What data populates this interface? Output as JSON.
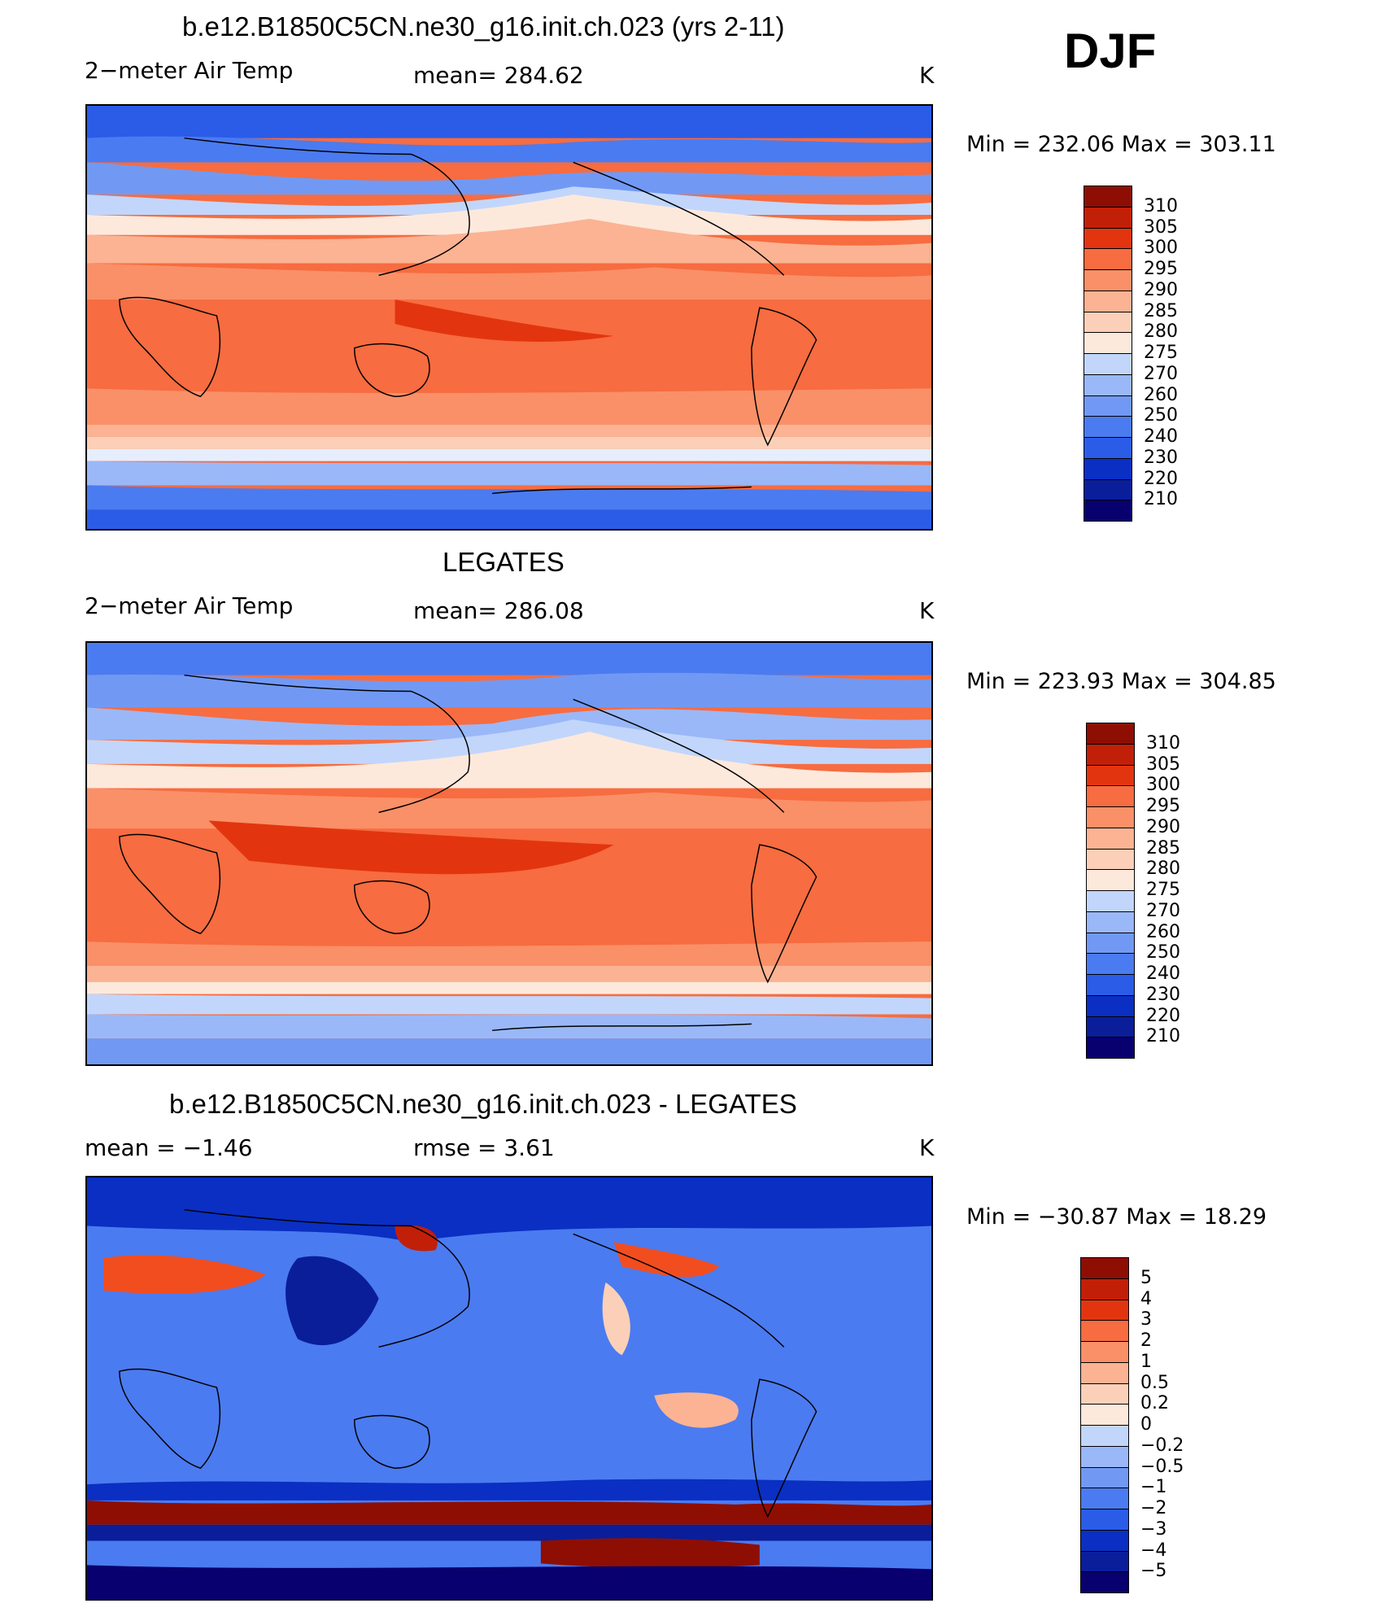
{
  "season": "DJF",
  "colors": {
    "temp_palette": [
      "#08006e",
      "#0a1e9a",
      "#0a2fc2",
      "#1442d8",
      "#2a5ce8",
      "#4b7bf0",
      "#7199f4",
      "#9ab8f8",
      "#c2d6fb",
      "#e6eefe",
      "#fde9dc",
      "#fcd0b8",
      "#fbb393",
      "#fa9068",
      "#f76c40",
      "#f24d1f",
      "#e2350f",
      "#c21f08",
      "#8e0e03"
    ],
    "diff_palette": [
      "#08006e",
      "#0a1e9a",
      "#0a2fc2",
      "#1442d8",
      "#2a5ce8",
      "#4b7bf0",
      "#7199f4",
      "#9ab8f8",
      "#c2d6fb",
      "#e6eefe",
      "#fde9dc",
      "#fcd0b8",
      "#fbb393",
      "#fa9068",
      "#f76c40",
      "#f24d1f",
      "#e2350f",
      "#c21f08",
      "#8e0e03"
    ]
  },
  "panels": [
    {
      "title": "b.e12.B1850C5CN.ne30_g16.init.ch.023 (yrs 2-11)",
      "left": "2−meter Air Temp",
      "center": "mean=  284.62",
      "units": "K",
      "minmax": "Min  =  232.06  Max  =  303.11",
      "colorbar_type": "temp"
    },
    {
      "title": "LEGATES",
      "left": "2−meter Air Temp",
      "center": "mean=  286.08",
      "units": "K",
      "minmax": "Min  =  223.93  Max  =  304.85",
      "colorbar_type": "temp"
    },
    {
      "title": "b.e12.B1850C5CN.ne30_g16.init.ch.023 - LEGATES",
      "left": "mean  =    −1.46",
      "center": "rmse  =     3.61",
      "units": "K",
      "minmax": "Min  =  −30.87  Max  =    18.29",
      "colorbar_type": "diff"
    }
  ],
  "chart_data": [
    {
      "type": "heatmap",
      "title": "b.e12.B1850C5CN.ne30_g16.init.ch.023 (yrs 2-11)",
      "variable": "2-meter Air Temp",
      "units": "K",
      "mean": 284.62,
      "min": 232.06,
      "max": 303.11,
      "colorbar_levels": [
        "310",
        "305",
        "300",
        "295",
        "290",
        "285",
        "280",
        "275",
        "270",
        "260",
        "250",
        "240",
        "230",
        "220",
        "210"
      ]
    },
    {
      "type": "heatmap",
      "title": "LEGATES",
      "variable": "2-meter Air Temp",
      "units": "K",
      "mean": 286.08,
      "min": 223.93,
      "max": 304.85,
      "colorbar_levels": [
        "310",
        "305",
        "300",
        "295",
        "290",
        "285",
        "280",
        "275",
        "270",
        "260",
        "250",
        "240",
        "230",
        "220",
        "210"
      ]
    },
    {
      "type": "heatmap",
      "title": "b.e12.B1850C5CN.ne30_g16.init.ch.023 - LEGATES",
      "units": "K",
      "mean": -1.46,
      "rmse": 3.61,
      "min": -30.87,
      "max": 18.29,
      "colorbar_levels": [
        "5",
        "4",
        "3",
        "2",
        "1",
        "0.5",
        "0.2",
        "0",
        "−0.2",
        "−0.5",
        "−1",
        "−2",
        "−3",
        "−4",
        "−5"
      ]
    }
  ]
}
